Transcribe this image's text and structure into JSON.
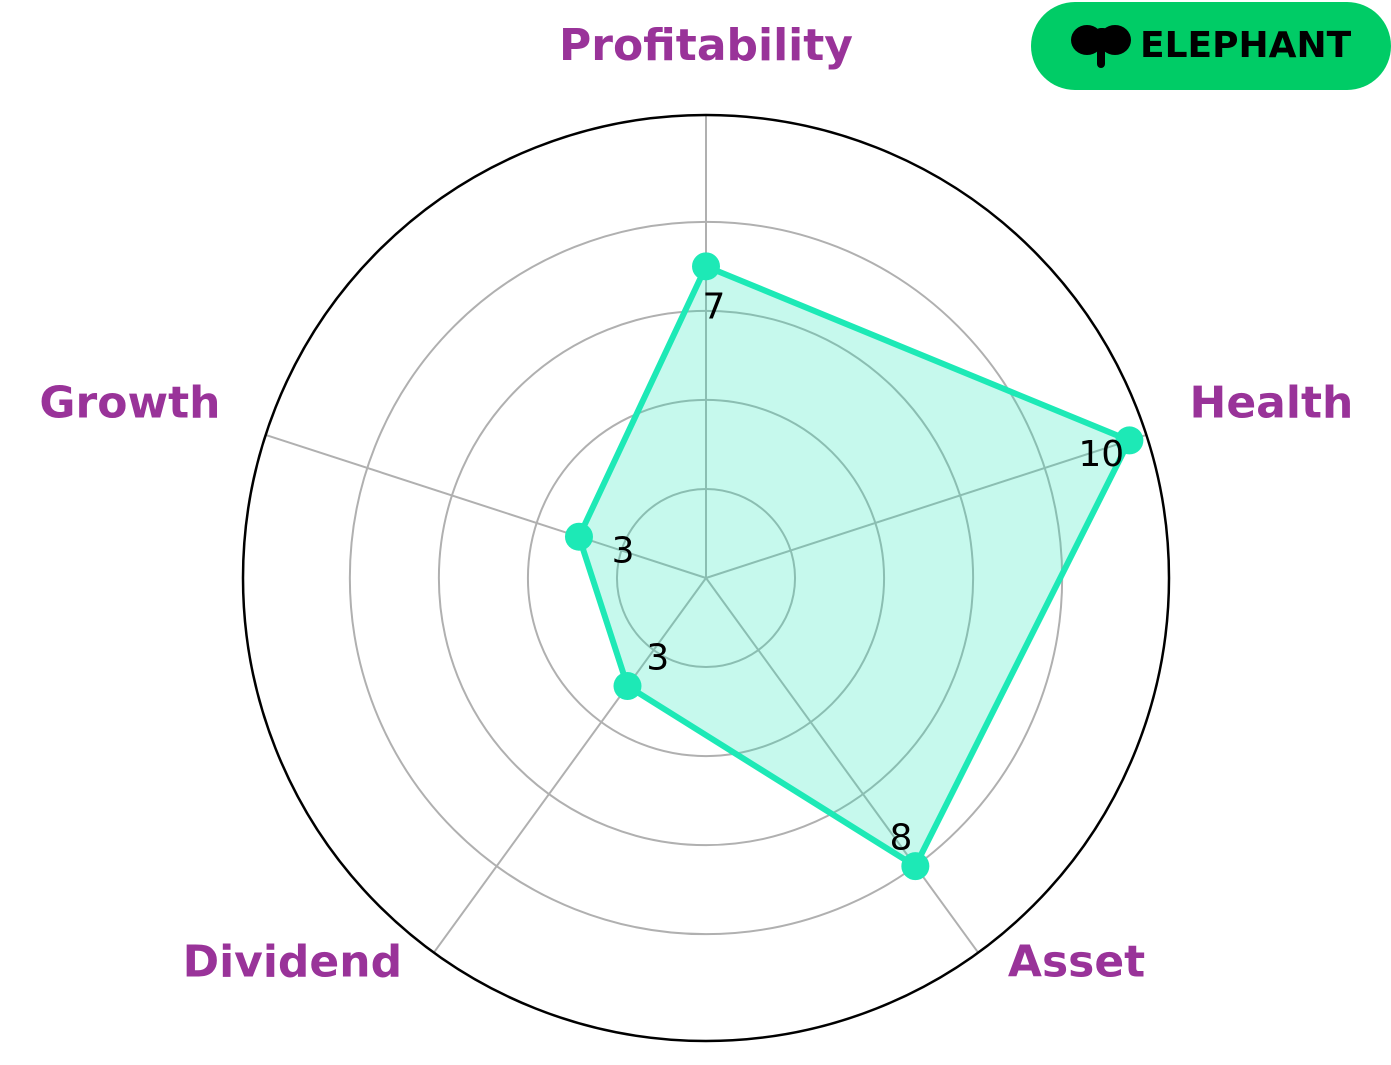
{
  "logo": "ELEPHANT",
  "chart_data": {
    "type": "radar",
    "categories": [
      "Profitability",
      "Health",
      "Asset",
      "Dividend",
      "Growth"
    ],
    "values": [
      7,
      10,
      8,
      3,
      3
    ],
    "color": "#1de9b6",
    "ylim": [
      0,
      10.4
    ],
    "yticks": [
      2,
      4,
      6,
      8
    ],
    "grid": true
  }
}
